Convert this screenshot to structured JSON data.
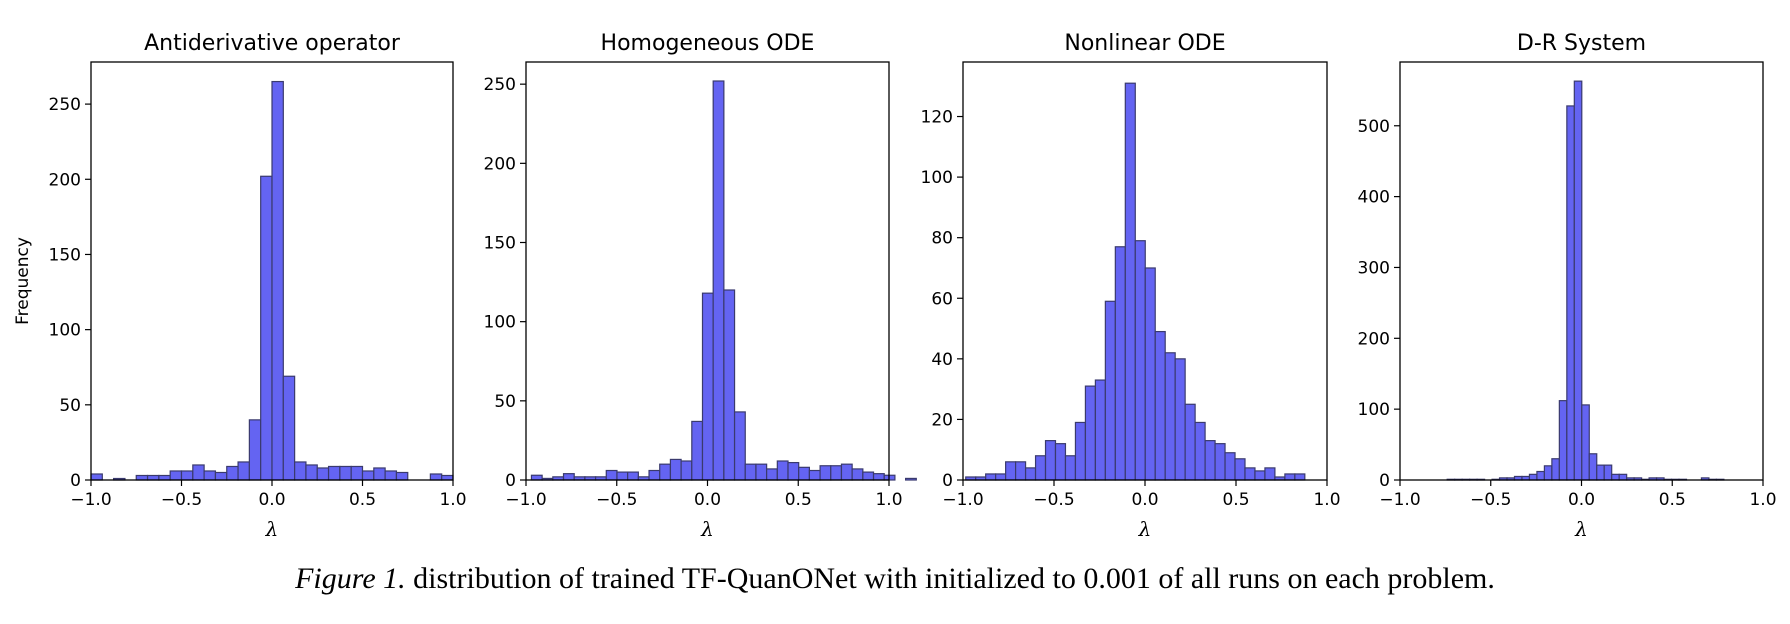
{
  "figure": {
    "caption_label": "Figure 1.",
    "caption_text": " distribution of trained TF-QuanONet with initialized to 0.001 of all runs on each problem."
  },
  "colors": {
    "bar_fill": "#6464f2",
    "bar_edge": "#3a3a6e",
    "axes": "#000000"
  },
  "chart_data": [
    {
      "type": "bar",
      "title": "Antiderivative operator",
      "xlabel": "λ",
      "ylabel": "Frequency",
      "xlim": [
        -1.0,
        1.0
      ],
      "ylim": [
        0,
        278
      ],
      "xticks": [
        "−1.0",
        "−0.5",
        "0.0",
        "0.5",
        "1.0"
      ],
      "xtick_values": [
        -1.0,
        -0.5,
        0.0,
        0.5,
        1.0
      ],
      "yticks": [
        0,
        50,
        100,
        150,
        200,
        250
      ],
      "bin_start": -1.0,
      "bin_width": 0.0625,
      "values": [
        4,
        0,
        1,
        0,
        3,
        3,
        3,
        6,
        6,
        10,
        6,
        5,
        9,
        12,
        40,
        202,
        265,
        69,
        12,
        10,
        8,
        9,
        9,
        9,
        6,
        8,
        6,
        5,
        0,
        0,
        4,
        3
      ]
    },
    {
      "type": "bar",
      "title": "Homogeneous ODE",
      "xlabel": "λ",
      "ylabel": "",
      "xlim": [
        -1.0,
        1.0
      ],
      "ylim": [
        0,
        264
      ],
      "xticks": [
        "−1.0",
        "−0.5",
        "0.0",
        "0.5",
        "1.0"
      ],
      "xtick_values": [
        -1.0,
        -0.5,
        0.0,
        0.5,
        1.0
      ],
      "yticks": [
        0,
        50,
        100,
        150,
        200,
        250
      ],
      "bin_start": -0.97,
      "bin_width": 0.0589,
      "values": [
        3,
        1,
        2,
        4,
        2,
        2,
        2,
        6,
        5,
        5,
        2,
        6,
        10,
        13,
        12,
        37,
        118,
        252,
        120,
        43,
        10,
        10,
        7,
        12,
        11,
        8,
        6,
        9,
        9,
        10,
        7,
        5,
        4,
        3,
        0,
        1
      ]
    },
    {
      "type": "bar",
      "title": "Nonlinear ODE",
      "xlabel": "λ",
      "ylabel": "",
      "xlim": [
        -1.0,
        1.0
      ],
      "ylim": [
        0,
        138
      ],
      "xticks": [
        "−1.0",
        "−0.5",
        "0.0",
        "0.5",
        "1.0"
      ],
      "xtick_values": [
        -1.0,
        -0.5,
        0.0,
        0.5,
        1.0
      ],
      "yticks": [
        0,
        20,
        40,
        60,
        80,
        100,
        120
      ],
      "bin_start": -0.985,
      "bin_width": 0.0548,
      "values": [
        1,
        1,
        2,
        2,
        6,
        6,
        4,
        8,
        13,
        12,
        8,
        19,
        31,
        33,
        59,
        77,
        131,
        79,
        70,
        49,
        42,
        40,
        25,
        19,
        13,
        12,
        9,
        7,
        4,
        3,
        4,
        1,
        2,
        2
      ]
    },
    {
      "type": "bar",
      "title": "D-R System",
      "xlabel": "λ",
      "ylabel": "",
      "xlim": [
        -1.0,
        1.0
      ],
      "ylim": [
        0,
        590
      ],
      "xticks": [
        "−1.0",
        "−0.5",
        "0.0",
        "0.5",
        "1.0"
      ],
      "xtick_values": [
        -1.0,
        -0.5,
        0.0,
        0.5,
        1.0
      ],
      "yticks": [
        0,
        100,
        200,
        300,
        400,
        500
      ],
      "bin_start": -0.74,
      "bin_width": 0.0412,
      "values": [
        1,
        1,
        1,
        1,
        1,
        0,
        1,
        3,
        3,
        5,
        5,
        8,
        12,
        20,
        30,
        112,
        528,
        563,
        106,
        37,
        21,
        21,
        8,
        8,
        3,
        3,
        1,
        3,
        3,
        1,
        1,
        1,
        0,
        0,
        3,
        1,
        1
      ]
    }
  ]
}
